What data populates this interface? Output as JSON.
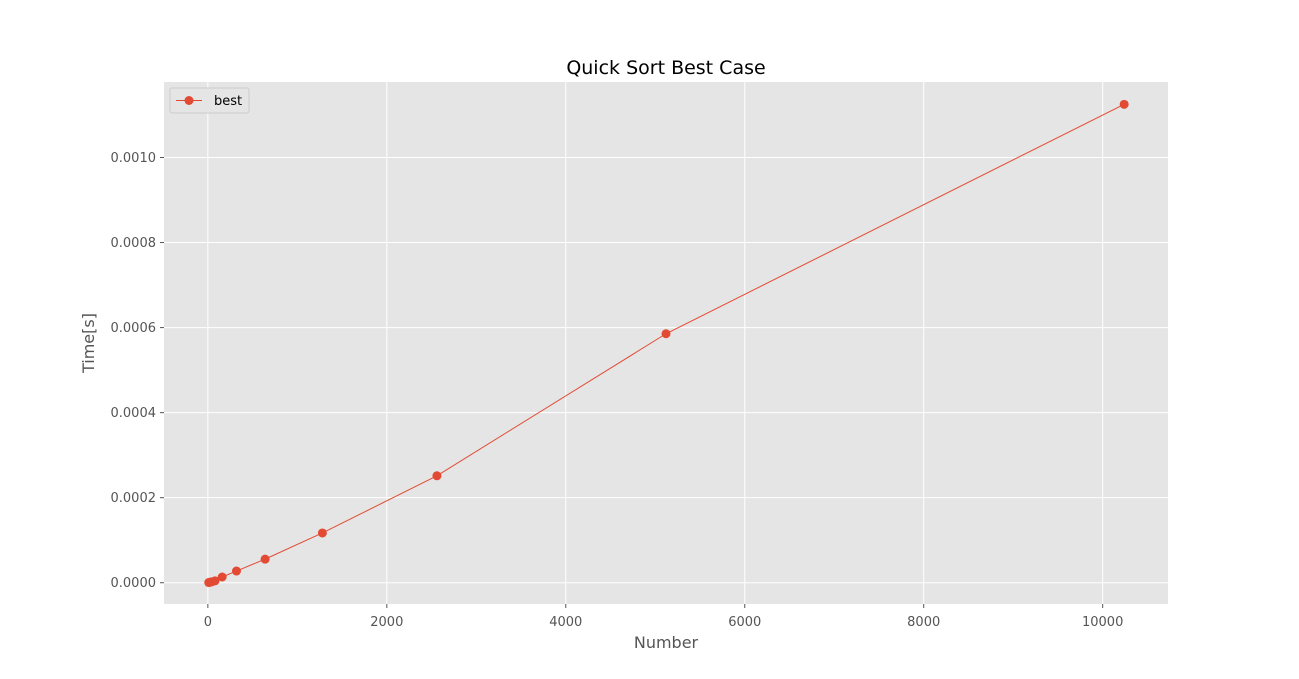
{
  "chart_data": {
    "type": "line",
    "title": "Quick Sort Best Case",
    "xlabel": "Number",
    "ylabel": "Time[s]",
    "xlim": [
      -490,
      10730
    ],
    "ylim": [
      -5e-05,
      0.0011775
    ],
    "xticks": [
      0,
      2000,
      4000,
      6000,
      8000,
      10000
    ],
    "xtick_labels": [
      "0",
      "2000",
      "4000",
      "6000",
      "8000",
      "10000"
    ],
    "yticks": [
      0.0,
      0.0002,
      0.0004,
      0.0006,
      0.0008,
      0.001
    ],
    "ytick_labels": [
      "0.0000",
      "0.0002",
      "0.0004",
      "0.0006",
      "0.0008",
      "0.0010"
    ],
    "grid": true,
    "legend_position": "top-left",
    "series": [
      {
        "name": "best",
        "color": "#E24A33",
        "marker": "circle",
        "x": [
          10,
          20,
          40,
          80,
          160,
          320,
          640,
          1280,
          2560,
          5120,
          10240
        ],
        "y": [
          5e-07,
          1e-06,
          2e-06,
          4.5e-06,
          1.35e-05,
          2.75e-05,
          5.55e-05,
          0.000117,
          0.0002515,
          0.0005855,
          0.001125
        ]
      }
    ]
  }
}
